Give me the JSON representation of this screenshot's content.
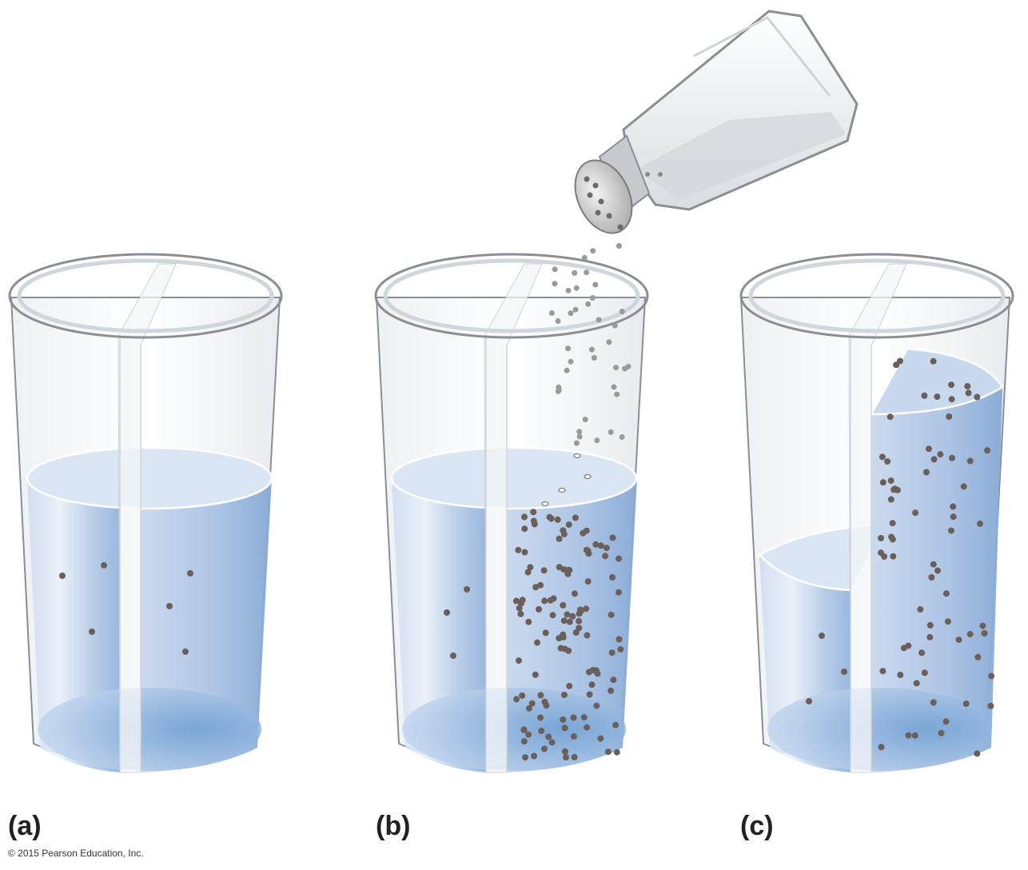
{
  "panels": [
    {
      "label": "(a)"
    },
    {
      "label": "(b)"
    },
    {
      "label": "(c)"
    }
  ],
  "copyright": "© 2015 Pearson Education, Inc.",
  "colors": {
    "water_light": "#dde8f6",
    "water_dark": "#7aa6d6",
    "glass_edge": "#8a8f96",
    "particle": "#6b5f5c",
    "particle_falling": "#9a9a9a"
  },
  "icons": [
    "beaker-icon",
    "salt-shaker-icon",
    "divider-membrane-icon",
    "solute-particle-icon"
  ]
}
